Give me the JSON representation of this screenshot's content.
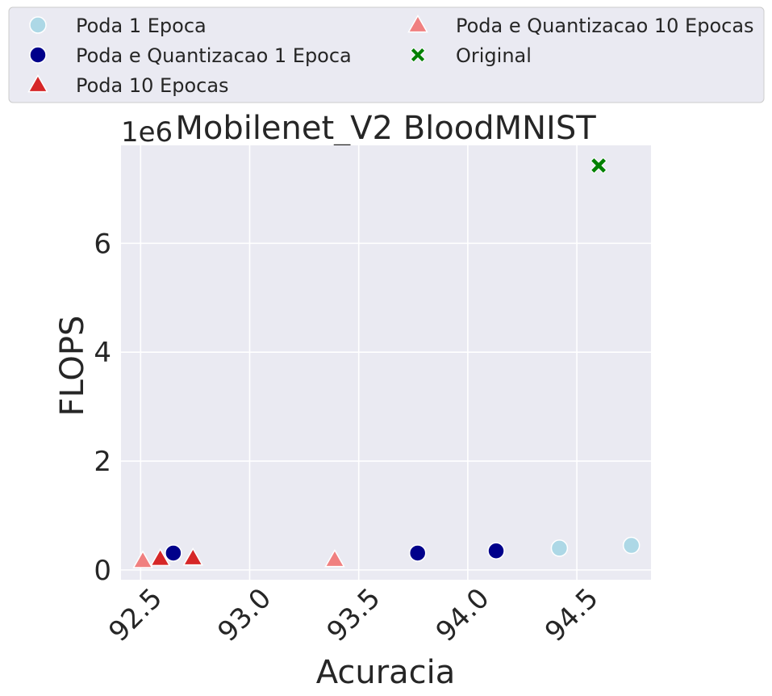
{
  "chart_data": {
    "type": "scatter",
    "title": "Mobilenet_V2 BloodMNIST",
    "xlabel": "Acuracia",
    "ylabel": "FLOPS",
    "y_offset_label": "1e6",
    "xlim": [
      92.41,
      94.84
    ],
    "ylim": [
      -0.18,
      7.8
    ],
    "xticks": [
      92.5,
      93.0,
      93.5,
      94.0,
      94.5
    ],
    "xtick_labels": [
      "92.5",
      "93.0",
      "93.5",
      "94.0",
      "94.5"
    ],
    "yticks": [
      0,
      2,
      4,
      6
    ],
    "ytick_labels": [
      "0",
      "2",
      "4",
      "6"
    ],
    "y_scale_multiplier": 1000000,
    "grid": true,
    "legend_position": "top, above plot, 2 columns",
    "legend": [
      {
        "label": "Poda 1 Epoca",
        "marker": "circle",
        "color": "#add8e6"
      },
      {
        "label": "Poda e Quantizacao 1 Epoca",
        "marker": "circle",
        "color": "#00008b"
      },
      {
        "label": "Poda 10 Epocas",
        "marker": "triangle",
        "color": "#d62728"
      },
      {
        "label": "Poda e Quantizacao 10 Epocas",
        "marker": "triangle",
        "color": "#f08080"
      },
      {
        "label": "Original",
        "marker": "x",
        "color": "#008000"
      }
    ],
    "series": [
      {
        "name": "Poda 1 Epoca",
        "marker": "circle",
        "color": "#add8e6",
        "points": [
          {
            "x": 94.42,
            "y": 0.4
          },
          {
            "x": 94.75,
            "y": 0.45
          }
        ]
      },
      {
        "name": "Poda e Quantizacao 1 Epoca",
        "marker": "circle",
        "color": "#00008b",
        "points": [
          {
            "x": 92.65,
            "y": 0.31
          },
          {
            "x": 93.77,
            "y": 0.31
          },
          {
            "x": 94.13,
            "y": 0.35
          }
        ]
      },
      {
        "name": "Poda 10 Epocas",
        "marker": "triangle",
        "color": "#d62728",
        "points": [
          {
            "x": 92.59,
            "y": 0.21
          },
          {
            "x": 92.74,
            "y": 0.22
          }
        ]
      },
      {
        "name": "Poda e Quantizacao 10 Epocas",
        "marker": "triangle",
        "color": "#f08080",
        "points": [
          {
            "x": 92.51,
            "y": 0.17
          },
          {
            "x": 93.39,
            "y": 0.19
          }
        ]
      },
      {
        "name": "Original",
        "marker": "x",
        "color": "#008000",
        "points": [
          {
            "x": 94.6,
            "y": 7.43
          }
        ]
      }
    ]
  }
}
